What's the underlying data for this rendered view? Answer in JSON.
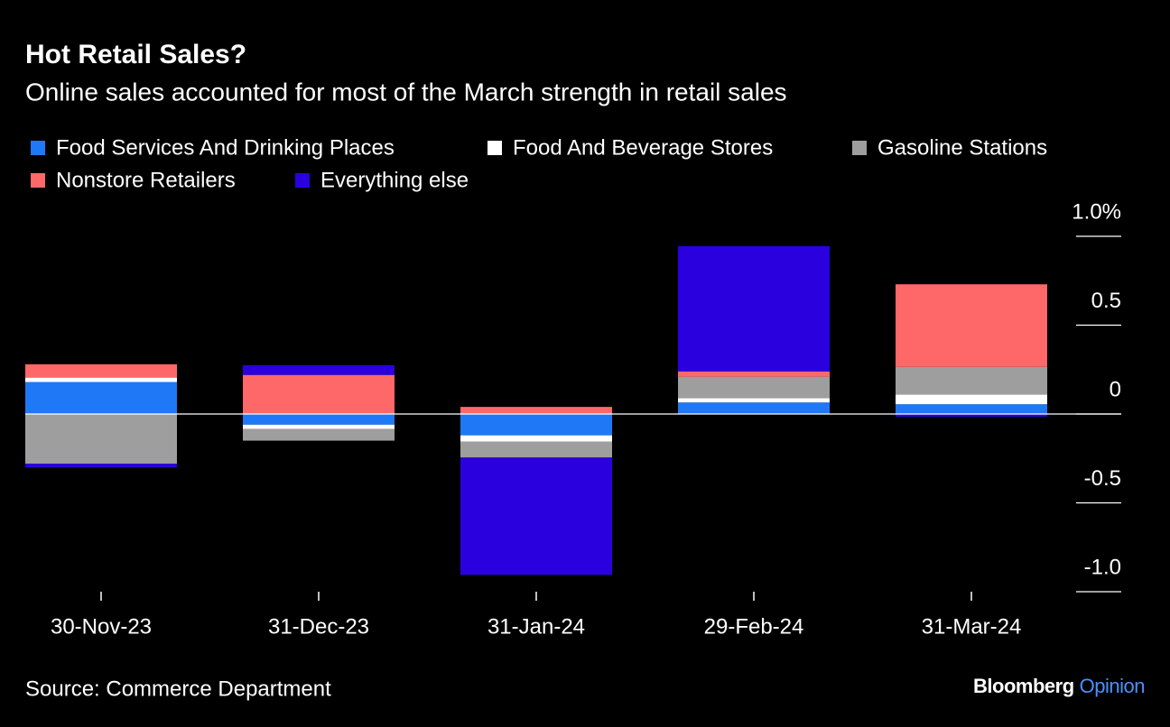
{
  "chart_data": {
    "type": "stacked-bar",
    "title": "Hot Retail Sales?",
    "subtitle": "Online sales accounted for most of the March strength in retail sales",
    "categories": [
      "30-Nov-23",
      "31-Dec-23",
      "31-Jan-24",
      "29-Feb-24",
      "31-Mar-24"
    ],
    "series": [
      {
        "name": "Food Services And Drinking Places",
        "color": "#1f78f6",
        "values": [
          0.18,
          -0.06,
          -0.12,
          0.065,
          0.055
        ]
      },
      {
        "name": "Food And Beverage Stores",
        "color": "#ffffff",
        "values": [
          0.025,
          -0.025,
          -0.035,
          0.025,
          0.055
        ]
      },
      {
        "name": "Gasoline Stations",
        "color": "#9e9e9e",
        "values": [
          -0.28,
          -0.065,
          -0.09,
          0.12,
          0.155
        ]
      },
      {
        "name": "Nonstore Retailers",
        "color": "#ff6868",
        "values": [
          0.075,
          0.22,
          0.04,
          0.03,
          0.465
        ]
      },
      {
        "name": "Everything else",
        "color": "#2a00de",
        "values": [
          -0.02,
          0.055,
          -0.66,
          0.705,
          -0.015
        ]
      }
    ],
    "ylim": [
      -1,
      1
    ],
    "yticks": [
      {
        "value": 1,
        "label": "1.0%"
      },
      0.5,
      0,
      -0.5,
      {
        "value": -1,
        "label": "-1.0"
      }
    ],
    "source": "Source: Commerce Department",
    "logo": "Bloomberg",
    "logo_suffix": "Opinion"
  }
}
